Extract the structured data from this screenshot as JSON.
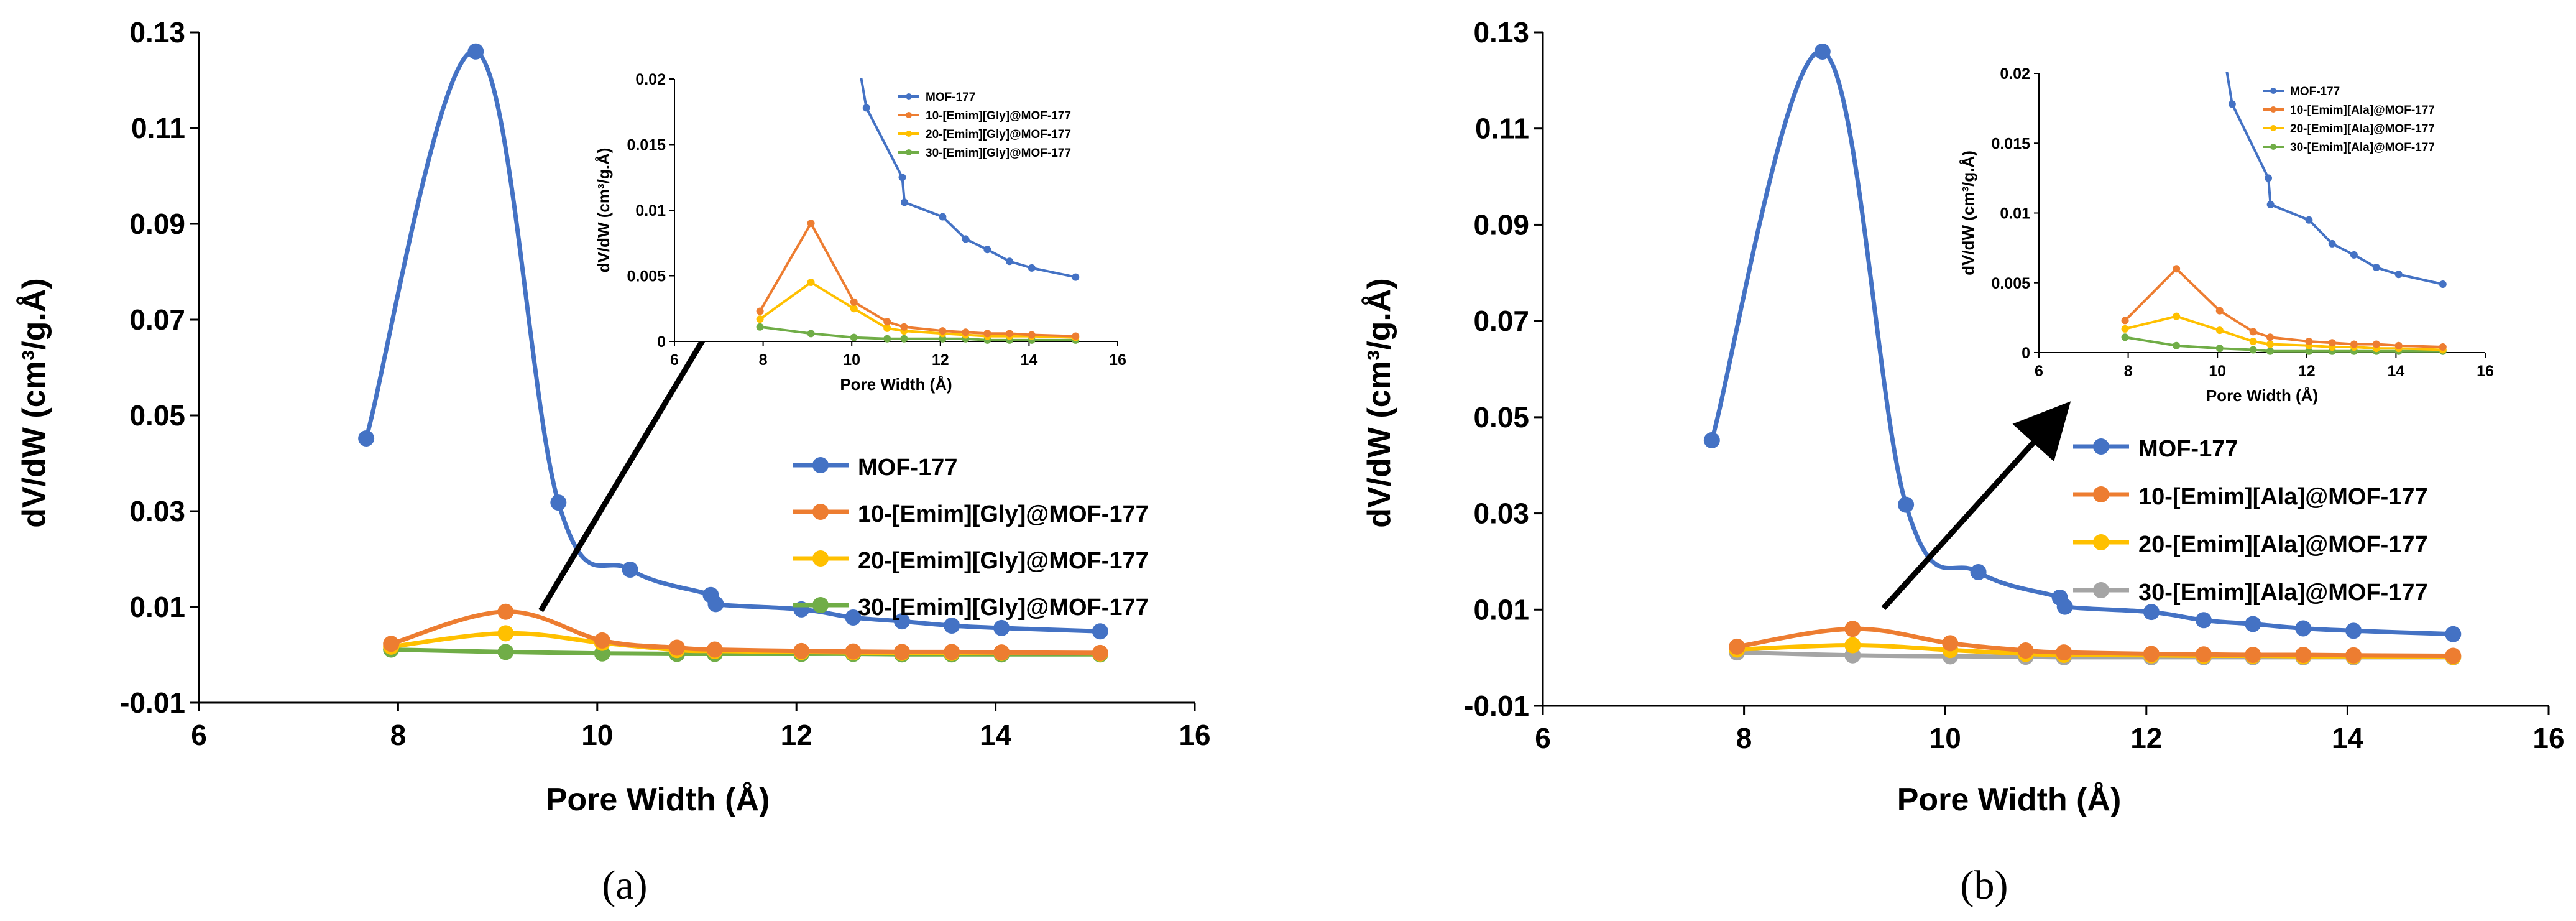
{
  "colors": {
    "MOF-177": "#4472C4",
    "s10": "#ED7D31",
    "s20": "#FFC000",
    "s30a": "#70AD47",
    "s30b": "#A5A5A5"
  },
  "chart_data": [
    {
      "id": "a",
      "type": "line",
      "panel_label": "(a)",
      "xlabel": "Pore Width (Å)",
      "ylabel": "dV/dW (cm³/g.Å)",
      "xlim": [
        6,
        16
      ],
      "ylim": [
        -0.01,
        0.13
      ],
      "xticks": [
        "6",
        "8",
        "10",
        "12",
        "14",
        "16"
      ],
      "yticks": [
        "-0.01",
        "0.01",
        "0.03",
        "0.05",
        "0.07",
        "0.09",
        "0.11",
        "0.13"
      ],
      "series": [
        {
          "name": "MOF-177",
          "color": "#4472C4",
          "x": [
            7.68,
            8.78,
            9.61,
            10.33,
            11.14,
            11.19,
            12.05,
            12.57,
            13.06,
            13.56,
            14.06,
            15.05
          ],
          "y": [
            0.0452,
            0.126,
            0.0318,
            0.0178,
            0.0125,
            0.0106,
            0.0095,
            0.0078,
            0.007,
            0.0061,
            0.0056,
            0.0049
          ]
        },
        {
          "name": "10-[Emim][Gly]@MOF-177",
          "color": "#ED7D31",
          "x": [
            7.93,
            9.08,
            10.05,
            10.8,
            11.18,
            12.05,
            12.57,
            13.06,
            13.56,
            14.06,
            15.05
          ],
          "y": [
            0.0023,
            0.009,
            0.003,
            0.0015,
            0.0011,
            0.0008,
            0.0007,
            0.0006,
            0.0006,
            0.0005,
            0.0004
          ]
        },
        {
          "name": "20-[Emim][Gly]@MOF-177",
          "color": "#FFC000",
          "x": [
            7.93,
            9.08,
            10.05,
            10.8,
            11.18,
            12.05,
            12.57,
            13.06,
            13.56,
            14.06,
            15.05
          ],
          "y": [
            0.0017,
            0.0045,
            0.0025,
            0.001,
            0.0008,
            0.0006,
            0.0005,
            0.0004,
            0.0004,
            0.0004,
            0.0003
          ]
        },
        {
          "name": "30-[Emim][Gly]@MOF-177",
          "color": "#70AD47",
          "x": [
            7.93,
            9.08,
            10.05,
            10.8,
            11.18,
            12.05,
            12.57,
            13.06,
            13.56,
            14.06,
            15.05
          ],
          "y": [
            0.0011,
            0.0006,
            0.0003,
            0.0002,
            0.0002,
            0.0002,
            0.0002,
            0.0001,
            0.0001,
            0.0001,
            0.0001
          ]
        }
      ],
      "inset": {
        "xlabel": "Pore Width (Å)",
        "ylabel": "dV/dW (cm³/g.Å)",
        "xlim": [
          6,
          16
        ],
        "ylim": [
          0,
          0.02
        ],
        "xticks": [
          "6",
          "8",
          "10",
          "12",
          "14",
          "16"
        ],
        "yticks": [
          "0",
          "0.005",
          "0.01",
          "0.015",
          "0.02"
        ],
        "legend": [
          "MOF-177",
          "10-[Emim][Gly]@MOF-177",
          "20-[Emim][Gly]@MOF-177",
          "30-[Emim][Gly]@MOF-177"
        ]
      }
    },
    {
      "id": "b",
      "type": "line",
      "panel_label": "(b)",
      "xlabel": "Pore Width (Å)",
      "ylabel": "dV/dW (cm³/g.Å)",
      "xlim": [
        6,
        16
      ],
      "ylim": [
        -0.01,
        0.13
      ],
      "xticks": [
        "6",
        "8",
        "10",
        "12",
        "14",
        "16"
      ],
      "yticks": [
        "-0.01",
        "0.01",
        "0.03",
        "0.05",
        "0.07",
        "0.09",
        "0.11",
        "0.13"
      ],
      "series": [
        {
          "name": "MOF-177",
          "color": "#4472C4",
          "x": [
            7.68,
            8.78,
            9.61,
            10.33,
            11.14,
            11.19,
            12.05,
            12.57,
            13.06,
            13.56,
            14.06,
            15.05
          ],
          "y": [
            0.0452,
            0.126,
            0.0318,
            0.0178,
            0.0125,
            0.0106,
            0.0095,
            0.0078,
            0.007,
            0.0061,
            0.0056,
            0.0049
          ]
        },
        {
          "name": "10-[Emim][Ala]@MOF-177",
          "color": "#ED7D31",
          "x": [
            7.93,
            9.08,
            10.05,
            10.8,
            11.18,
            12.05,
            12.57,
            13.06,
            13.56,
            14.06,
            15.05
          ],
          "y": [
            0.0023,
            0.006,
            0.003,
            0.0015,
            0.0011,
            0.0008,
            0.0007,
            0.0006,
            0.0006,
            0.0005,
            0.0004
          ]
        },
        {
          "name": "20-[Emim][Ala]@MOF-177",
          "color": "#FFC000",
          "x": [
            7.93,
            9.08,
            10.05,
            10.8,
            11.18,
            12.05,
            12.57,
            13.06,
            13.56,
            14.06,
            15.05
          ],
          "y": [
            0.0017,
            0.0026,
            0.0016,
            0.0008,
            0.0006,
            0.0005,
            0.0004,
            0.0004,
            0.0003,
            0.0003,
            0.0002
          ]
        },
        {
          "name": "30-[Emim][Ala]@MOF-177",
          "color": "#A5A5A5",
          "colorInset": "#70AD47",
          "x": [
            7.93,
            9.08,
            10.05,
            10.8,
            11.18,
            12.05,
            12.57,
            13.06,
            13.56,
            14.06,
            15.05
          ],
          "y": [
            0.0011,
            0.0005,
            0.0003,
            0.0002,
            0.0001,
            0.0001,
            0.0001,
            0.0001,
            0.0001,
            0.0001,
            0.0001
          ]
        }
      ],
      "inset": {
        "xlabel": "Pore Width (Å)",
        "ylabel": "dV/dW (cm³/g.Å)",
        "xlim": [
          6,
          16
        ],
        "ylim": [
          0,
          0.02
        ],
        "xticks": [
          "6",
          "8",
          "10",
          "12",
          "14",
          "16"
        ],
        "yticks": [
          "0",
          "0.005",
          "0.01",
          "0.015",
          "0.02"
        ],
        "legend": [
          "MOF-177",
          "10-[Emim][Ala]@MOF-177",
          "20-[Emim][Ala]@MOF-177",
          "30-[Emim][Ala]@MOF-177"
        ]
      }
    }
  ]
}
